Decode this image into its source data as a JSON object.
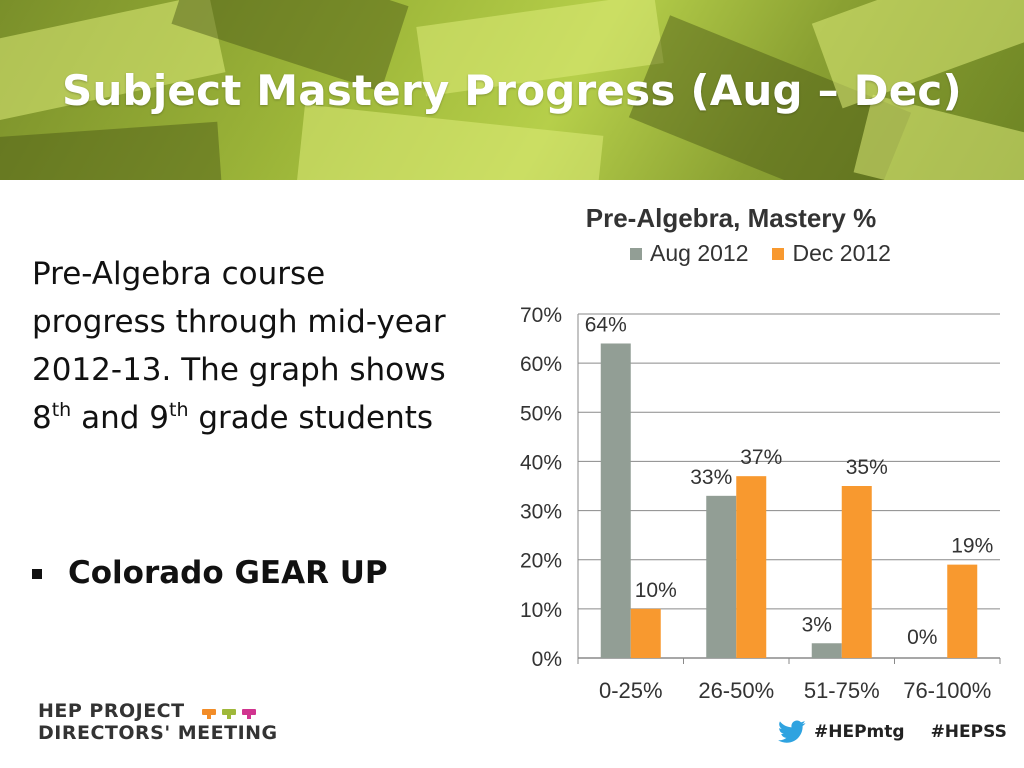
{
  "slide": {
    "title": "Subject Mastery Progress (Aug – Dec)",
    "description_parts": [
      "Pre-Algebra course progress through mid-year 2012-13.  The graph shows 8",
      "th",
      " and 9",
      "th",
      " grade students"
    ],
    "bullet": "Colorado GEAR UP"
  },
  "footer": {
    "logo_line1": "HEP PROJECT",
    "logo_line2": "DIRECTORS' MEETING",
    "hashtags": [
      "#HEPmtg",
      "#HEPSS"
    ],
    "icon": "twitter-bird-icon",
    "cap_colors": [
      "#f28c28",
      "#9fb83a",
      "#d0348f"
    ]
  },
  "chart_data": {
    "type": "bar",
    "title": "Pre-Algebra, Mastery %",
    "categories": [
      "0-25%",
      "26-50%",
      "51-75%",
      "76-100%"
    ],
    "series": [
      {
        "name": "Aug 2012",
        "color": "#929e95",
        "values": [
          64,
          33,
          3,
          0
        ],
        "labels": [
          "64%",
          "33%",
          "3%",
          "0%"
        ]
      },
      {
        "name": "Dec 2012",
        "color": "#f8992f",
        "values": [
          10,
          37,
          35,
          19
        ],
        "labels": [
          "10%",
          "37%",
          "35%",
          "19%"
        ]
      }
    ],
    "ylim": [
      0,
      70
    ],
    "yticks": [
      "0%",
      "10%",
      "20%",
      "30%",
      "40%",
      "50%",
      "60%",
      "70%"
    ],
    "grid": true,
    "legend_position": "top"
  }
}
